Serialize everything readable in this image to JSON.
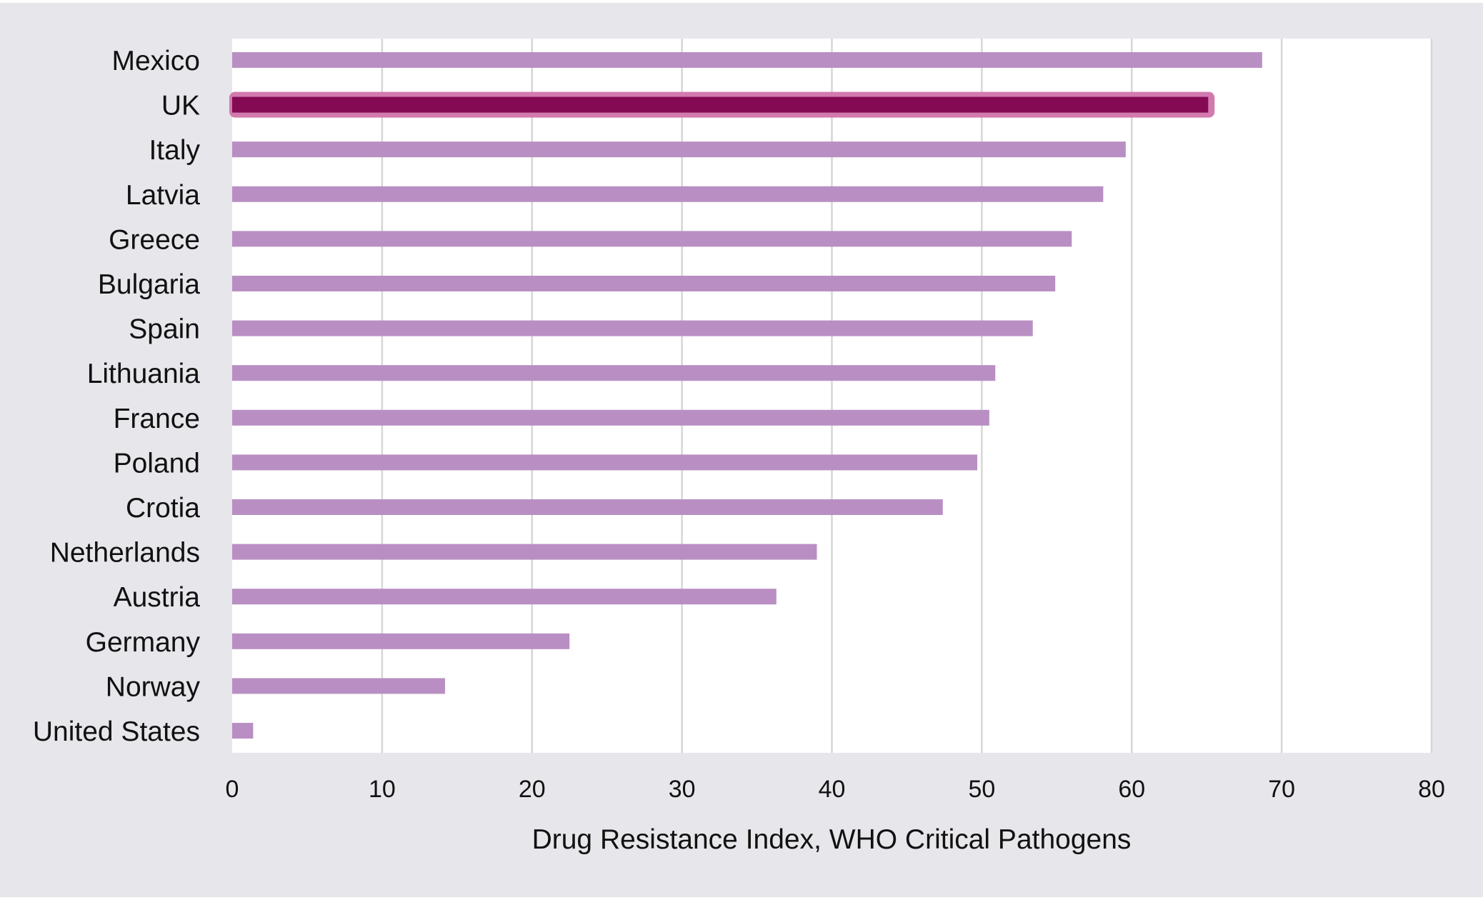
{
  "chart_data": {
    "type": "bar",
    "orientation": "horizontal",
    "title": "",
    "xlabel": "Drug Resistance Index, WHO Critical Pathogens",
    "ylabel": "",
    "xlim": [
      0,
      80
    ],
    "xticks": [
      0,
      10,
      20,
      30,
      40,
      50,
      60,
      70,
      80
    ],
    "grid": "vertical",
    "legend": "none",
    "categories": [
      "Mexico",
      "UK",
      "Italy",
      "Latvia",
      "Greece",
      "Bulgaria",
      "Spain",
      "Lithuania",
      "France",
      "Poland",
      "Crotia",
      "Netherlands",
      "Austria",
      "Germany",
      "Norway",
      "United States"
    ],
    "values": [
      68.7,
      65.1,
      59.6,
      58.1,
      56.0,
      54.9,
      53.4,
      50.9,
      50.5,
      49.7,
      47.4,
      39.0,
      36.3,
      22.5,
      14.2,
      1.4
    ],
    "highlight": "UK",
    "colors": {
      "bar": "#b98fc3",
      "highlight_bar": "#850a54",
      "highlight_outline": "#d27aae",
      "grid": "#d6d6d6",
      "plot_background": "#ffffff",
      "background": "#e7e6ea"
    }
  }
}
